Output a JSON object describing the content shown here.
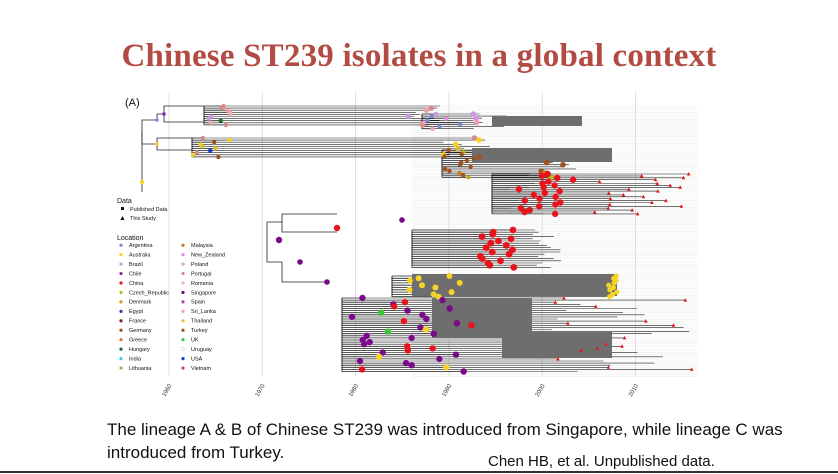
{
  "slide": {
    "title": "Chinese ST239 isolates in a global context",
    "caption": "The lineage A & B of Chinese  ST239 was introduced from Singapore, while lineage C was introduced from Turkey.",
    "source": "Chen HB, et al. Unpublished data."
  },
  "figure": {
    "panel_label": "(A)",
    "axis_ticks": [
      "1960",
      "1970",
      "1980",
      "1990",
      "2000",
      "2010"
    ],
    "data_legend": {
      "title": "Data",
      "items": [
        {
          "label": "Published Data",
          "shape": "square"
        },
        {
          "label": "This Study",
          "shape": "triangle"
        }
      ]
    },
    "location_legend": {
      "title": "Location",
      "items": [
        {
          "label": "Argentina",
          "color": "#7b8cd6"
        },
        {
          "label": "Australia",
          "color": "#f5d327"
        },
        {
          "label": "Brazil",
          "color": "#c89be0"
        },
        {
          "label": "Chile",
          "color": "#7a2fb3"
        },
        {
          "label": "China",
          "color": "#e8141b"
        },
        {
          "label": "Czech_Republic",
          "color": "#b8b820"
        },
        {
          "label": "Denmark",
          "color": "#e0901e"
        },
        {
          "label": "Egypt",
          "color": "#3a3aa8"
        },
        {
          "label": "France",
          "color": "#7a1e1e"
        },
        {
          "label": "Germany",
          "color": "#8a5a2a"
        },
        {
          "label": "Greece",
          "color": "#e07a2a"
        },
        {
          "label": "Hungary",
          "color": "#1e6e2e"
        },
        {
          "label": "India",
          "color": "#3ad0e0"
        },
        {
          "label": "Lithuania",
          "color": "#c8a060"
        },
        {
          "label": "Malaysia",
          "color": "#d07a20"
        },
        {
          "label": "New_Zealand",
          "color": "#e090e0"
        },
        {
          "label": "Poland",
          "color": "#e8a0b8"
        },
        {
          "label": "Portugal",
          "color": "#d88a8a"
        },
        {
          "label": "Romania",
          "color": "#f0b0b0"
        },
        {
          "label": "Singapore",
          "color": "#7a0a8a"
        },
        {
          "label": "Spain",
          "color": "#a84a9a"
        },
        {
          "label": "Sri_Lanka",
          "color": "#f0a0a8"
        },
        {
          "label": "Thailand",
          "color": "#e0c030"
        },
        {
          "label": "Turkey",
          "color": "#a0521e"
        },
        {
          "label": "UK",
          "color": "#3ac83a"
        },
        {
          "label": "Uruguay",
          "color": "#ffffff"
        },
        {
          "label": "USA",
          "color": "#1e3ad0"
        },
        {
          "label": "Vietnam",
          "color": "#e8288a"
        }
      ]
    }
  }
}
